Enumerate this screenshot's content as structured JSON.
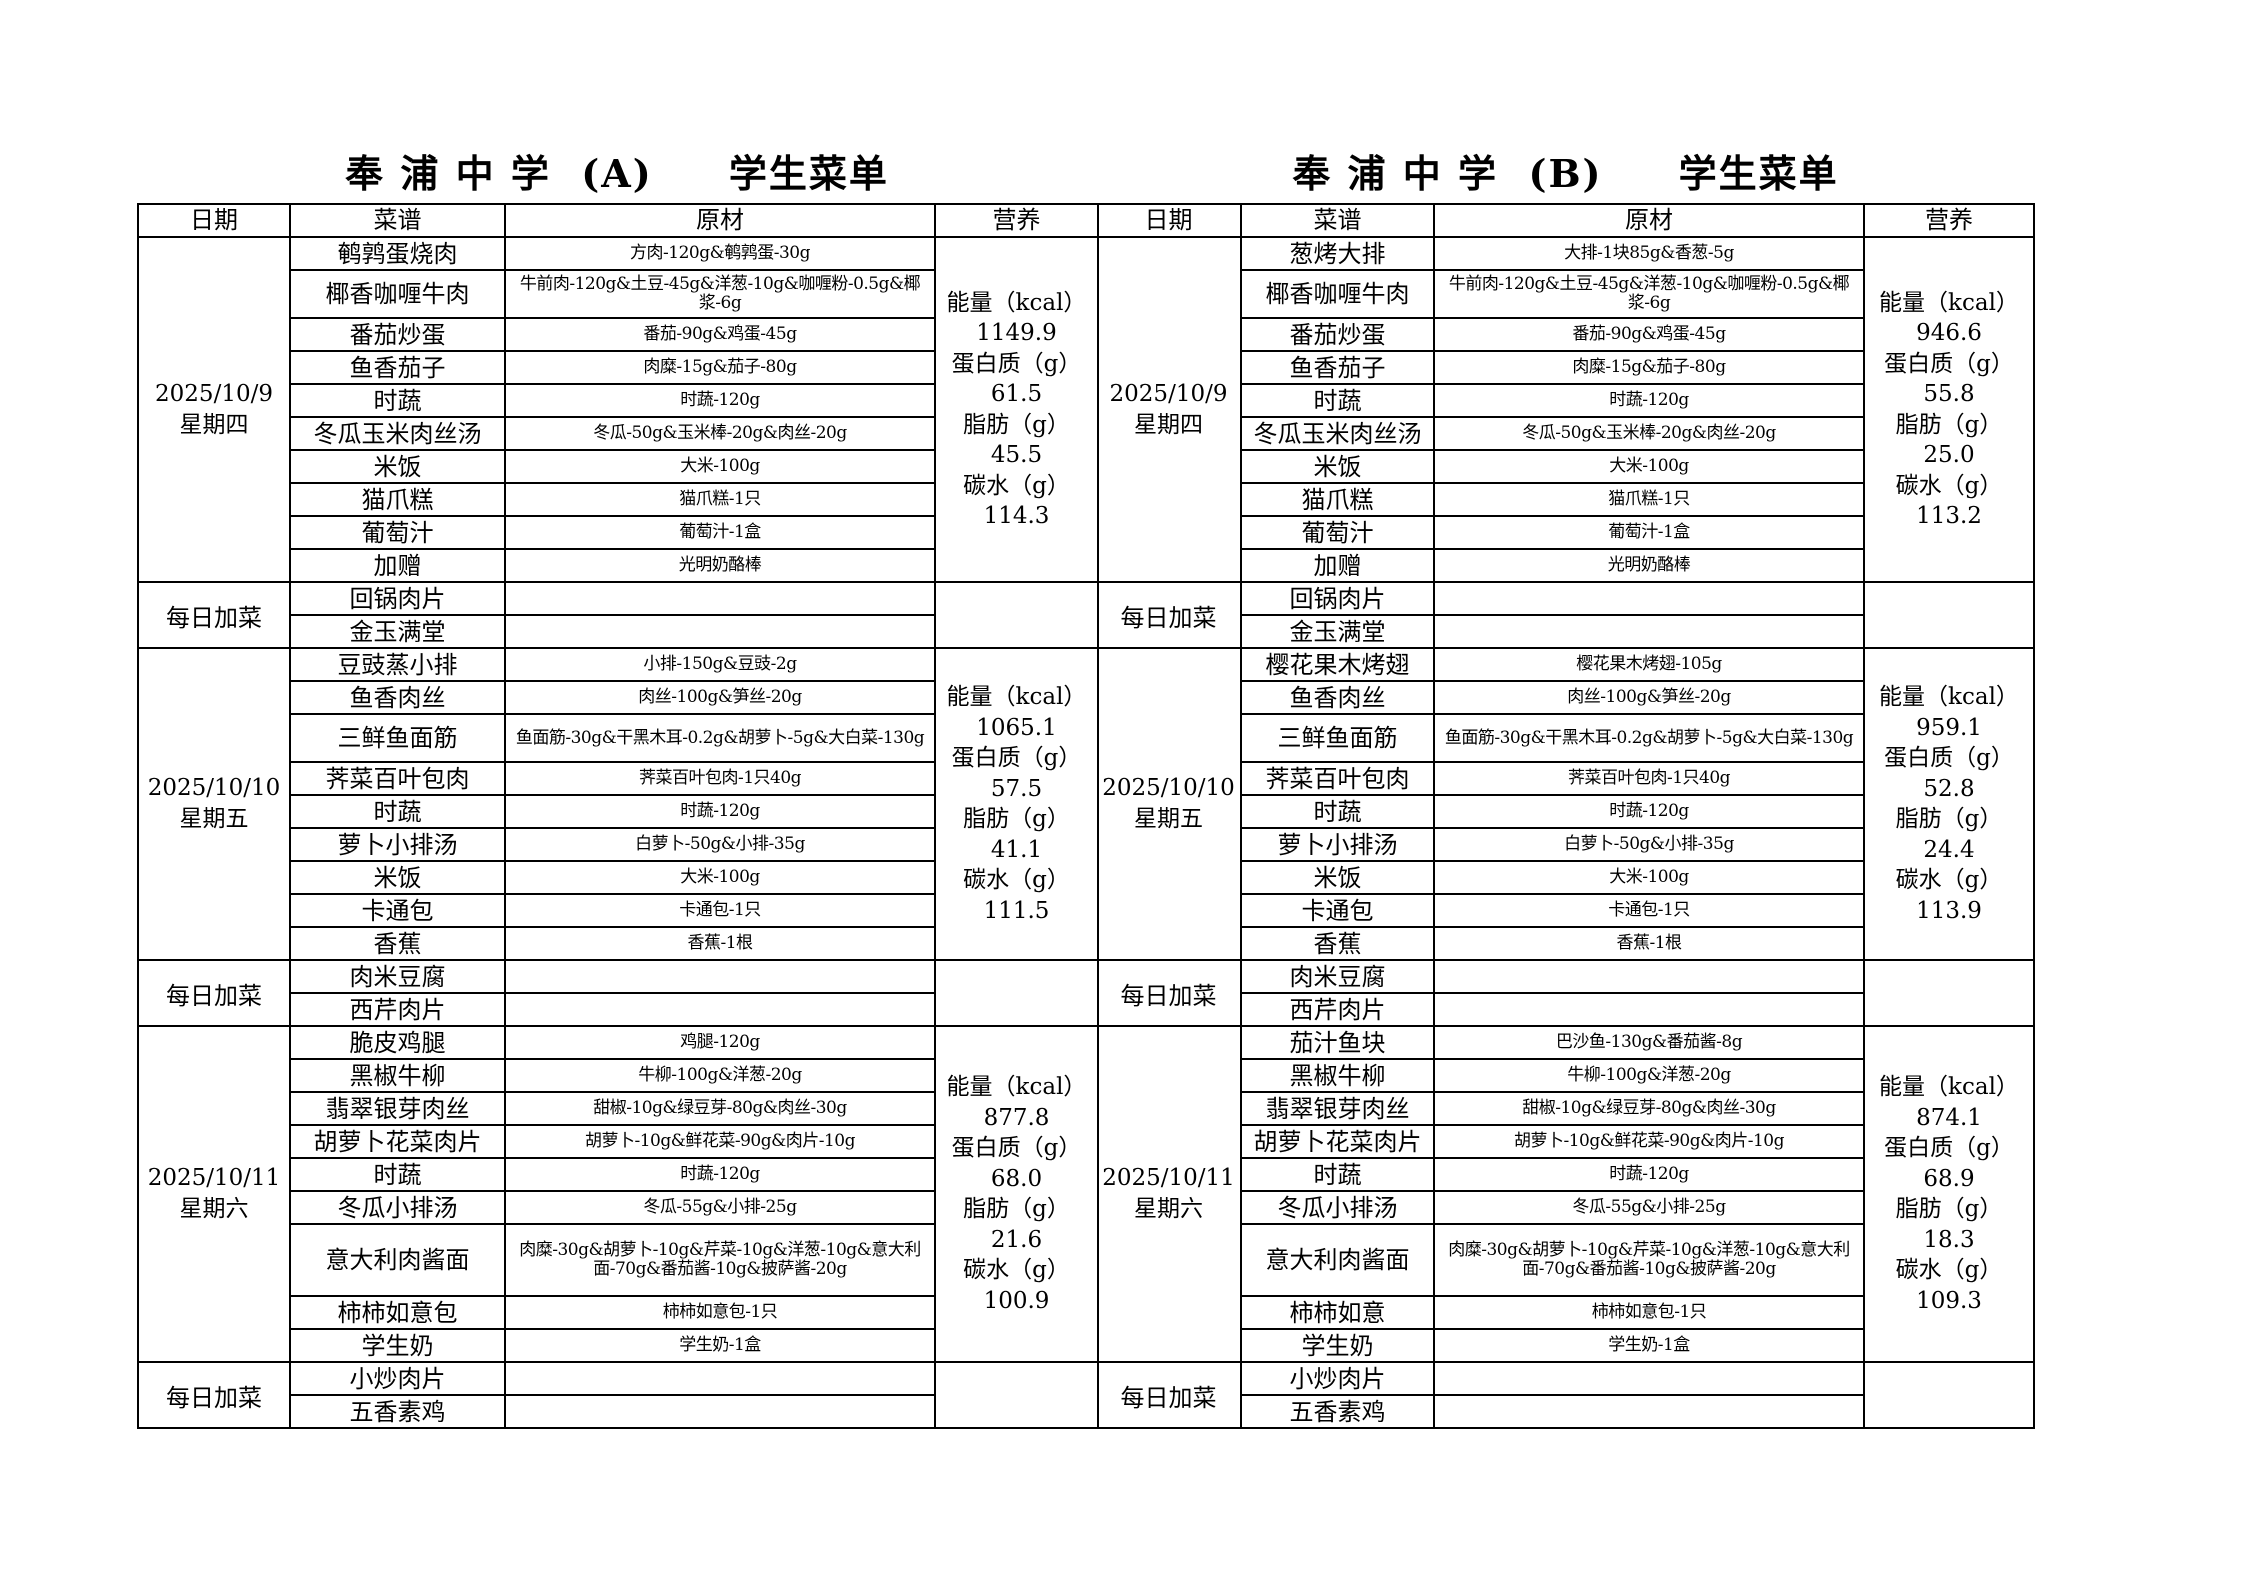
{
  "menus": [
    {
      "title": "奉 浦 中 学  (A)     学生菜单",
      "headers": [
        "日期",
        "菜谱",
        "原材",
        "营养"
      ],
      "days": [
        {
          "date": "2025/10/9",
          "weekday": "星期四",
          "dishes": [
            {
              "name": "鹌鹑蛋烧肉",
              "ingredients": "方肉-120g&鹌鹑蛋-30g"
            },
            {
              "name": "椰香咖喱牛肉",
              "ingredients": "牛前肉-120g&土豆-45g&洋葱-10g&咖喱粉-0.5g&椰浆-6g"
            },
            {
              "name": "番茄炒蛋",
              "ingredients": "番茄-90g&鸡蛋-45g"
            },
            {
              "name": "鱼香茄子",
              "ingredients": "肉糜-15g&茄子-80g"
            },
            {
              "name": "时蔬",
              "ingredients": "时蔬-120g"
            },
            {
              "name": "冬瓜玉米肉丝汤",
              "ingredients": "冬瓜-50g&玉米棒-20g&肉丝-20g"
            },
            {
              "name": "米饭",
              "ingredients": "大米-100g"
            },
            {
              "name": "猫爪糕",
              "ingredients": "猫爪糕-1只"
            },
            {
              "name": "葡萄汁",
              "ingredients": "葡萄汁-1盒"
            },
            {
              "name": "加赠",
              "ingredients": "光明奶酪棒"
            }
          ],
          "nutrition": [
            "能量（kcal）",
            "1149.9",
            "蛋白质（g）",
            "61.5",
            "脂肪（g）",
            "45.5",
            "碳水（g）",
            "114.3"
          ],
          "extra_label": "每日加菜",
          "extras": [
            "回锅肉片",
            "金玉满堂"
          ]
        },
        {
          "date": "2025/10/10",
          "weekday": "星期五",
          "dishes": [
            {
              "name": "豆豉蒸小排",
              "ingredients": "小排-150g&豆豉-2g"
            },
            {
              "name": "鱼香肉丝",
              "ingredients": "肉丝-100g&笋丝-20g"
            },
            {
              "name": "三鲜鱼面筋",
              "ingredients": "鱼面筋-30g&干黑木耳-0.2g&胡萝卜-5g&大白菜-130g"
            },
            {
              "name": "荠菜百叶包肉",
              "ingredients": "荠菜百叶包肉-1只40g"
            },
            {
              "name": "时蔬",
              "ingredients": "时蔬-120g"
            },
            {
              "name": "萝卜小排汤",
              "ingredients": "白萝卜-50g&小排-35g"
            },
            {
              "name": "米饭",
              "ingredients": "大米-100g"
            },
            {
              "name": "卡通包",
              "ingredients": "卡通包-1只"
            },
            {
              "name": "香蕉",
              "ingredients": "香蕉-1根"
            }
          ],
          "nutrition": [
            "能量（kcal）",
            "1065.1",
            "蛋白质（g）",
            "57.5",
            "脂肪（g）",
            "41.1",
            "碳水（g）",
            "111.5"
          ],
          "extra_label": "每日加菜",
          "extras": [
            "肉米豆腐",
            "西芹肉片"
          ]
        },
        {
          "date": "2025/10/11",
          "weekday": "星期六",
          "dishes": [
            {
              "name": "脆皮鸡腿",
              "ingredients": "鸡腿-120g"
            },
            {
              "name": "黑椒牛柳",
              "ingredients": "牛柳-100g&洋葱-20g"
            },
            {
              "name": "翡翠银芽肉丝",
              "ingredients": "甜椒-10g&绿豆芽-80g&肉丝-30g"
            },
            {
              "name": "胡萝卜花菜肉片",
              "ingredients": "胡萝卜-10g&鲜花菜-90g&肉片-10g"
            },
            {
              "name": "时蔬",
              "ingredients": "时蔬-120g"
            },
            {
              "name": "冬瓜小排汤",
              "ingredients": "冬瓜-55g&小排-25g"
            },
            {
              "name": "意大利肉酱面",
              "ingredients": "肉糜-30g&胡萝卜-10g&芹菜-10g&洋葱-10g&意大利面-70g&番茄酱-10g&披萨酱-20g"
            },
            {
              "name": "柿柿如意包",
              "ingredients": "柿柿如意包-1只"
            },
            {
              "name": "学生奶",
              "ingredients": "学生奶-1盒"
            }
          ],
          "nutrition": [
            "能量（kcal）",
            "877.8",
            "蛋白质（g）",
            "68.0",
            "脂肪（g）",
            "21.6",
            "碳水（g）",
            "100.9"
          ],
          "extra_label": "每日加菜",
          "extras": [
            "小炒肉片",
            "五香素鸡"
          ]
        }
      ]
    },
    {
      "title": "奉 浦 中 学  (B)     学生菜单",
      "headers": [
        "日期",
        "菜谱",
        "原材",
        "营养"
      ],
      "days": [
        {
          "date": "2025/10/9",
          "weekday": "星期四",
          "dishes": [
            {
              "name": "葱烤大排",
              "ingredients": "大排-1块85g&香葱-5g"
            },
            {
              "name": "椰香咖喱牛肉",
              "ingredients": "牛前肉-120g&土豆-45g&洋葱-10g&咖喱粉-0.5g&椰浆-6g"
            },
            {
              "name": "番茄炒蛋",
              "ingredients": "番茄-90g&鸡蛋-45g"
            },
            {
              "name": "鱼香茄子",
              "ingredients": "肉糜-15g&茄子-80g"
            },
            {
              "name": "时蔬",
              "ingredients": "时蔬-120g"
            },
            {
              "name": "冬瓜玉米肉丝汤",
              "ingredients": "冬瓜-50g&玉米棒-20g&肉丝-20g"
            },
            {
              "name": "米饭",
              "ingredients": "大米-100g"
            },
            {
              "name": "猫爪糕",
              "ingredients": "猫爪糕-1只"
            },
            {
              "name": "葡萄汁",
              "ingredients": "葡萄汁-1盒"
            },
            {
              "name": "加赠",
              "ingredients": "光明奶酪棒"
            }
          ],
          "nutrition": [
            "能量（kcal）",
            "946.6",
            "蛋白质（g）",
            "55.8",
            "脂肪（g）",
            "25.0",
            "碳水（g）",
            "113.2"
          ],
          "extra_label": "每日加菜",
          "extras": [
            "回锅肉片",
            "金玉满堂"
          ]
        },
        {
          "date": "2025/10/10",
          "weekday": "星期五",
          "dishes": [
            {
              "name": "樱花果木烤翅",
              "ingredients": "樱花果木烤翅-105g"
            },
            {
              "name": "鱼香肉丝",
              "ingredients": "肉丝-100g&笋丝-20g"
            },
            {
              "name": "三鲜鱼面筋",
              "ingredients": "鱼面筋-30g&干黑木耳-0.2g&胡萝卜-5g&大白菜-130g"
            },
            {
              "name": "荠菜百叶包肉",
              "ingredients": "荠菜百叶包肉-1只40g"
            },
            {
              "name": "时蔬",
              "ingredients": "时蔬-120g"
            },
            {
              "name": "萝卜小排汤",
              "ingredients": "白萝卜-50g&小排-35g"
            },
            {
              "name": "米饭",
              "ingredients": "大米-100g"
            },
            {
              "name": "卡通包",
              "ingredients": "卡通包-1只"
            },
            {
              "name": "香蕉",
              "ingredients": "香蕉-1根"
            }
          ],
          "nutrition": [
            "能量（kcal）",
            "959.1",
            "蛋白质（g）",
            "52.8",
            "脂肪（g）",
            "24.4",
            "碳水（g）",
            "113.9"
          ],
          "extra_label": "每日加菜",
          "extras": [
            "肉米豆腐",
            "西芹肉片"
          ]
        },
        {
          "date": "2025/10/11",
          "weekday": "星期六",
          "dishes": [
            {
              "name": "茄汁鱼块",
              "ingredients": "巴沙鱼-130g&番茄酱-8g"
            },
            {
              "name": "黑椒牛柳",
              "ingredients": "牛柳-100g&洋葱-20g"
            },
            {
              "name": "翡翠银芽肉丝",
              "ingredients": "甜椒-10g&绿豆芽-80g&肉丝-30g"
            },
            {
              "name": "胡萝卜花菜肉片",
              "ingredients": "胡萝卜-10g&鲜花菜-90g&肉片-10g"
            },
            {
              "name": "时蔬",
              "ingredients": "时蔬-120g"
            },
            {
              "name": "冬瓜小排汤",
              "ingredients": "冬瓜-55g&小排-25g"
            },
            {
              "name": "意大利肉酱面",
              "ingredients": "肉糜-30g&胡萝卜-10g&芹菜-10g&洋葱-10g&意大利面-70g&番茄酱-10g&披萨酱-20g"
            },
            {
              "name": "柿柿如意",
              "ingredients": "柿柿如意包-1只"
            },
            {
              "name": "学生奶",
              "ingredients": "学生奶-1盒"
            }
          ],
          "nutrition": [
            "能量（kcal）",
            "874.1",
            "蛋白质（g）",
            "68.9",
            "脂肪（g）",
            "18.3",
            "碳水（g）",
            "109.3"
          ],
          "extra_label": "每日加菜",
          "extras": [
            "小炒肉片",
            "五香素鸡"
          ]
        }
      ]
    }
  ]
}
